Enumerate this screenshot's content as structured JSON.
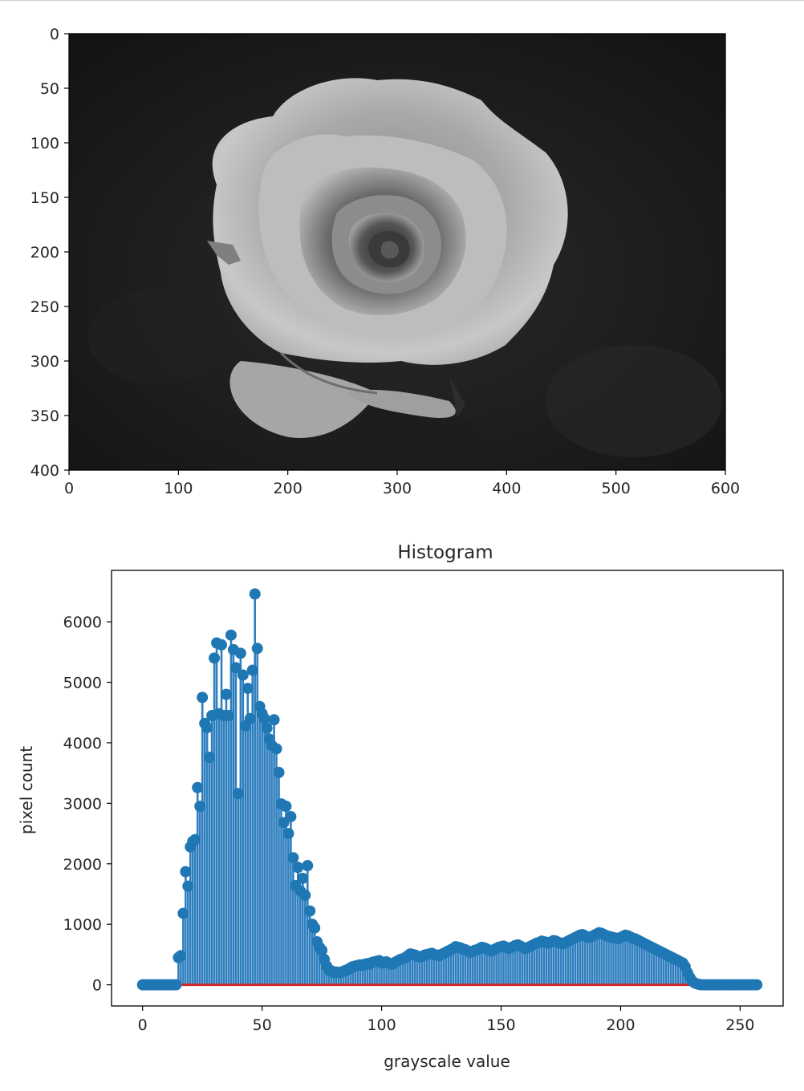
{
  "chart_data": [
    {
      "type": "image",
      "xlim": [
        0,
        600
      ],
      "ylim": [
        400,
        0
      ],
      "xticks": [
        "0",
        "100",
        "200",
        "300",
        "400",
        "500",
        "600"
      ],
      "yticks": [
        "0",
        "50",
        "100",
        "150",
        "200",
        "250",
        "300",
        "350",
        "400"
      ],
      "colormap": "gray"
    },
    {
      "type": "stem",
      "title": "Histogram",
      "xlabel": "grayscale value",
      "ylabel": "pixel count",
      "xlim": [
        -13,
        268
      ],
      "ylim": [
        -350,
        6850
      ],
      "xticks": [
        "0",
        "50",
        "100",
        "150",
        "200",
        "250"
      ],
      "yticks": [
        "0",
        "1000",
        "2000",
        "3000",
        "4000",
        "5000",
        "6000"
      ],
      "marker_color": "#1f77b4",
      "stem_color": "#2f7fbf",
      "baseline_color": "#d62728",
      "x": "0..255",
      "y": [
        0,
        0,
        0,
        0,
        0,
        0,
        0,
        0,
        0,
        0,
        0,
        0,
        0,
        0,
        0,
        450,
        480,
        1180,
        1870,
        1630,
        2280,
        2370,
        2400,
        3260,
        2950,
        4750,
        4320,
        4250,
        3760,
        4450,
        5400,
        5650,
        4480,
        5620,
        4450,
        4800,
        4450,
        5780,
        5540,
        5240,
        3160,
        5480,
        5120,
        4280,
        4900,
        4400,
        5200,
        6460,
        5560,
        4600,
        4480,
        4400,
        4240,
        4060,
        3960,
        4380,
        3900,
        3510,
        2990,
        2680,
        2950,
        2500,
        2780,
        2100,
        1640,
        1940,
        1550,
        1760,
        1480,
        1970,
        1220,
        1000,
        940,
        710,
        620,
        570,
        420,
        310,
        240,
        230,
        200,
        210,
        200,
        210,
        220,
        240,
        250,
        280,
        300,
        310,
        320,
        330,
        320,
        340,
        350,
        340,
        370,
        380,
        390,
        400,
        360,
        370,
        380,
        360,
        340,
        350,
        380,
        400,
        420,
        430,
        450,
        480,
        510,
        500,
        490,
        470,
        460,
        470,
        490,
        500,
        510,
        520,
        500,
        490,
        480,
        500,
        520,
        540,
        560,
        580,
        600,
        630,
        620,
        610,
        590,
        580,
        560,
        540,
        550,
        570,
        580,
        600,
        620,
        610,
        590,
        570,
        560,
        580,
        600,
        620,
        630,
        640,
        620,
        600,
        610,
        630,
        650,
        660,
        640,
        620,
        600,
        610,
        630,
        650,
        670,
        690,
        700,
        720,
        710,
        700,
        690,
        710,
        730,
        720,
        700,
        690,
        680,
        700,
        720,
        740,
        760,
        780,
        800,
        820,
        830,
        810,
        790,
        780,
        800,
        820,
        840,
        860,
        850,
        830,
        810,
        800,
        790,
        780,
        770,
        760,
        780,
        800,
        820,
        810,
        790,
        770,
        760,
        740,
        720,
        700,
        680,
        660,
        640,
        620,
        600,
        580,
        560,
        540,
        520,
        500,
        480,
        460,
        440,
        420,
        400,
        380,
        360,
        300,
        200,
        120,
        60,
        30,
        15,
        5,
        0,
        0,
        0,
        0,
        0,
        0,
        0,
        0,
        0,
        0,
        0,
        0,
        0,
        0,
        0,
        0,
        0,
        0,
        0,
        0,
        0,
        0,
        0,
        0
      ]
    }
  ]
}
